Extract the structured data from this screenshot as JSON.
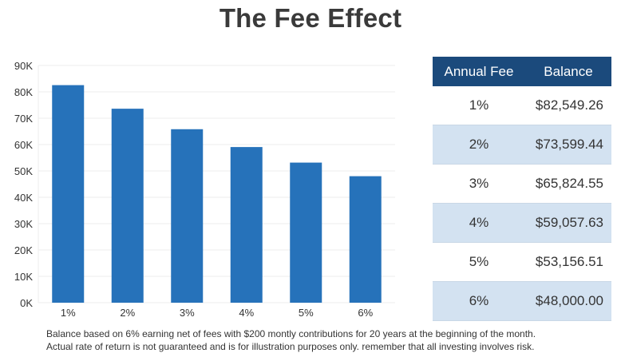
{
  "title": "The Fee Effect",
  "chart_data": {
    "type": "bar",
    "title": "The Fee Effect",
    "xlabel": "",
    "ylabel": "",
    "categories": [
      "1%",
      "2%",
      "3%",
      "4%",
      "5%",
      "6%"
    ],
    "values": [
      82549.26,
      73599.44,
      65824.55,
      59057.63,
      53156.51,
      48000.0
    ],
    "ylim": [
      0,
      90000
    ],
    "yticks": [
      0,
      10000,
      20000,
      30000,
      40000,
      50000,
      60000,
      70000,
      80000,
      90000
    ],
    "ytick_labels": [
      "0K",
      "10K",
      "20K",
      "30K",
      "40K",
      "50K",
      "60K",
      "70K",
      "80K",
      "90K"
    ],
    "grid": true,
    "bar_color": "#2672ba"
  },
  "table": {
    "headers": [
      "Annual Fee",
      "Balance"
    ],
    "rows": [
      {
        "fee": "1%",
        "balance": "$82,549.26"
      },
      {
        "fee": "2%",
        "balance": "$73,599.44"
      },
      {
        "fee": "3%",
        "balance": "$65,824.55"
      },
      {
        "fee": "4%",
        "balance": "$59,057.63"
      },
      {
        "fee": "5%",
        "balance": "$53,156.51"
      },
      {
        "fee": "6%",
        "balance": "$48,000.00"
      }
    ],
    "header_color": "#1b4a7c",
    "alt_row_color": "#d3e2f1"
  },
  "footnote": {
    "line1": "Balance based on 6% earning net of fees with $200 montly contributions for 20 years at the beginning of the month.",
    "line2": "Actual rate of return is not guaranteed and is for illustration purposes only. remember that all investing involves risk."
  }
}
